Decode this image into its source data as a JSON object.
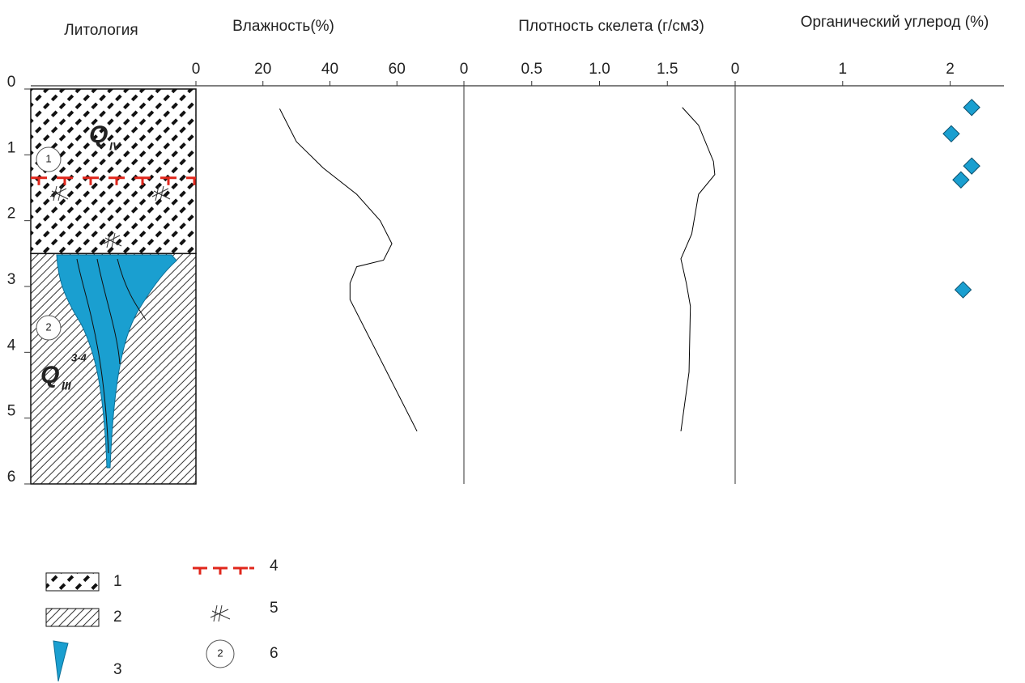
{
  "lithology": {
    "title": "Литология",
    "layers": [
      {
        "top": 0,
        "bottom": 2.5
      },
      {
        "top": 2.5,
        "bottom": 6
      }
    ],
    "frost_table_depth": 1.35,
    "q_iv": {
      "base": "Q",
      "sub": "IV"
    },
    "q_iii": {
      "base": "Q",
      "sub": "III",
      "sup": "3-4"
    },
    "markers": [
      "1",
      "2"
    ]
  },
  "chart_data": [
    {
      "type": "line",
      "title": "Влажность(%)",
      "color": "#000000",
      "xlim": [
        0,
        80
      ],
      "xticks": [
        0,
        20,
        40,
        60
      ],
      "ylim": [
        0,
        6
      ],
      "yticks": [
        0,
        1,
        2,
        3,
        4,
        5,
        6
      ],
      "values": [
        25,
        30,
        38,
        48,
        55,
        58.5,
        56,
        48,
        46,
        46,
        66
      ],
      "depth": [
        0.3,
        0.8,
        1.2,
        1.6,
        2.0,
        2.35,
        2.6,
        2.7,
        2.95,
        3.2,
        5.2
      ]
    },
    {
      "type": "line",
      "title": "Плотность скелета (г/см3)",
      "color": "#000000",
      "xlim": [
        0,
        2
      ],
      "xticks": [
        0,
        0.5,
        {
          "value": 1,
          "label": "1.0"
        },
        1.5
      ],
      "ylim": [
        0,
        6
      ],
      "values": [
        1.61,
        1.73,
        1.84,
        1.85,
        1.73,
        1.68,
        1.6,
        1.64,
        1.67,
        1.66,
        1.6
      ],
      "depth": [
        0.28,
        0.55,
        1.1,
        1.3,
        1.6,
        2.2,
        2.58,
        2.95,
        3.3,
        4.3,
        5.2
      ]
    },
    {
      "type": "scatter",
      "title": "Органический углерод (%)",
      "color": "#1a9fd0",
      "xlim": [
        0,
        2.5
      ],
      "xticks": [
        0,
        1,
        2
      ],
      "ylim": [
        0,
        6
      ],
      "values": [
        2.2,
        2.01,
        2.2,
        2.1,
        2.12
      ],
      "depth": [
        0.28,
        0.68,
        1.17,
        1.38,
        3.05
      ]
    }
  ],
  "legend": {
    "items": [
      "1",
      "2",
      "3",
      "4",
      "5",
      "6"
    ],
    "marker_example": "2"
  }
}
